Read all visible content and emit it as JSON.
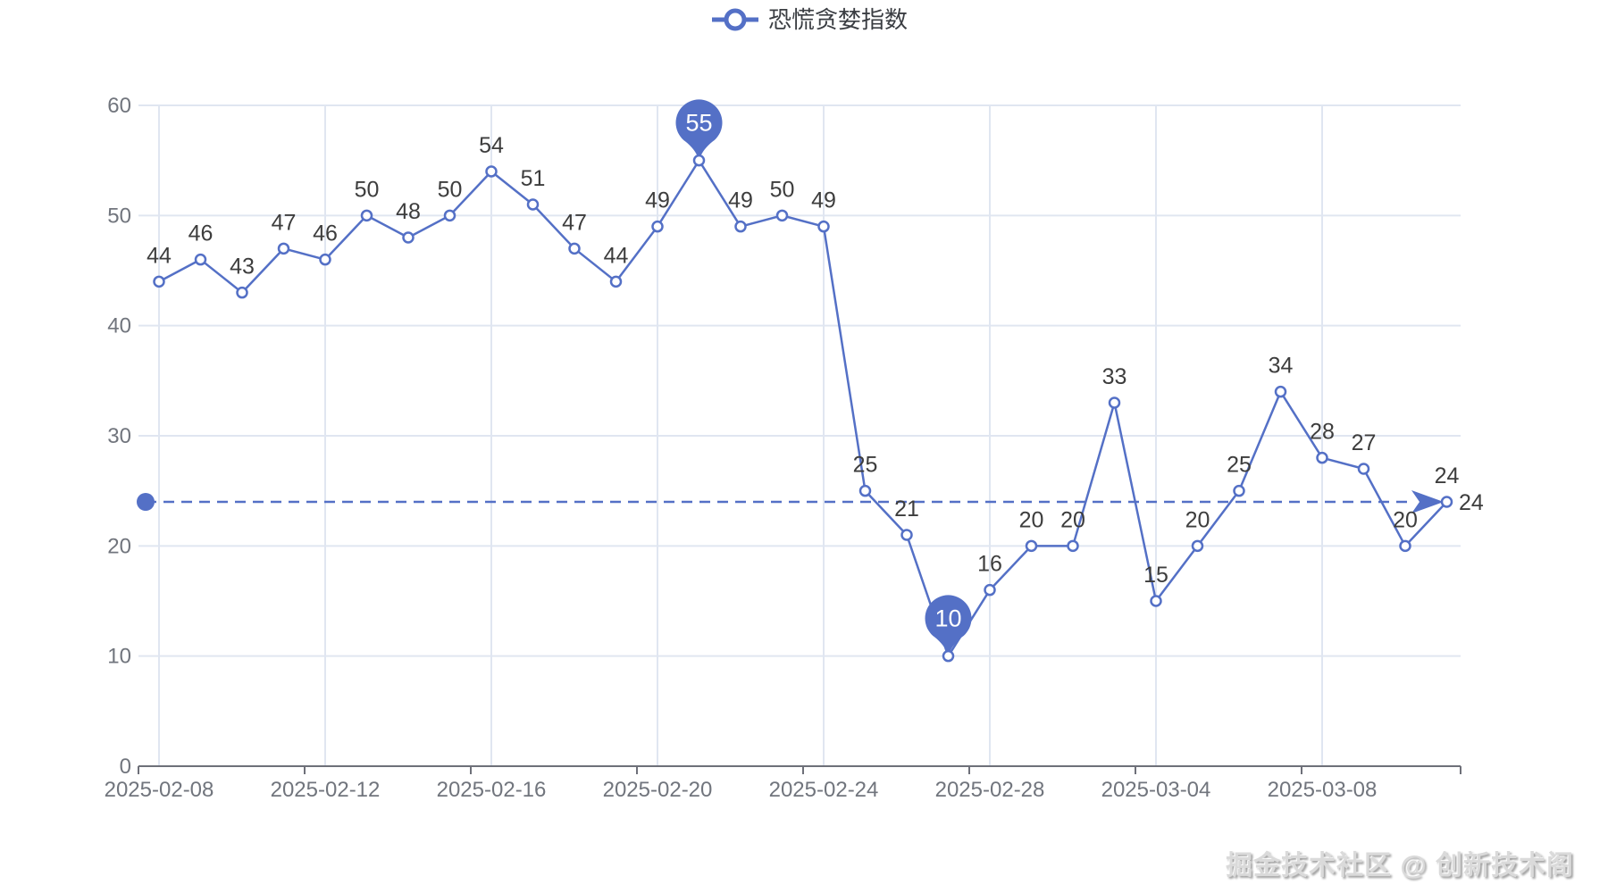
{
  "legend": {
    "label": "恐慌贪婪指数"
  },
  "watermark": "掘金技术社区 @ 创新技术阁",
  "colors": {
    "accent": "#5470C6",
    "label": "#3d3d3d",
    "axis_label": "#71757d",
    "axis_line": "#6E7079",
    "grid": "#E0E6F1",
    "pin_text": "#ffffff"
  },
  "chart_data": {
    "type": "line",
    "title": "",
    "legend_position": "top-center",
    "grid": true,
    "x": [
      "2025-02-08",
      "2025-02-09",
      "2025-02-10",
      "2025-02-11",
      "2025-02-12",
      "2025-02-13",
      "2025-02-14",
      "2025-02-15",
      "2025-02-16",
      "2025-02-17",
      "2025-02-18",
      "2025-02-19",
      "2025-02-20",
      "2025-02-21",
      "2025-02-22",
      "2025-02-23",
      "2025-02-24",
      "2025-02-25",
      "2025-02-26",
      "2025-02-27",
      "2025-02-28",
      "2025-03-01",
      "2025-03-02",
      "2025-03-03",
      "2025-03-04",
      "2025-03-05",
      "2025-03-06",
      "2025-03-07",
      "2025-03-08",
      "2025-03-09",
      "2025-03-10",
      "2025-03-11"
    ],
    "series": [
      {
        "name": "恐慌贪婪指数",
        "values": [
          44,
          46,
          43,
          47,
          46,
          50,
          48,
          50,
          54,
          51,
          47,
          44,
          49,
          55,
          49,
          50,
          49,
          25,
          21,
          10,
          16,
          20,
          20,
          33,
          15,
          20,
          25,
          34,
          28,
          27,
          20,
          24
        ]
      }
    ],
    "x_tick_labels": [
      "2025-02-08",
      "2025-02-12",
      "2025-02-16",
      "2025-02-20",
      "2025-02-24",
      "2025-02-28",
      "2025-03-04",
      "2025-03-08"
    ],
    "x_tick_indices": [
      0,
      4,
      8,
      12,
      16,
      20,
      24,
      28
    ],
    "y_ticks": [
      0,
      10,
      20,
      30,
      40,
      50,
      60
    ],
    "ylim": [
      0,
      60
    ],
    "max_marker": {
      "date": "2025-02-21",
      "value": 55
    },
    "min_marker": {
      "date": "2025-02-27",
      "value": 10
    },
    "markline": {
      "value": 24,
      "label": "24",
      "style": "dashed"
    }
  }
}
